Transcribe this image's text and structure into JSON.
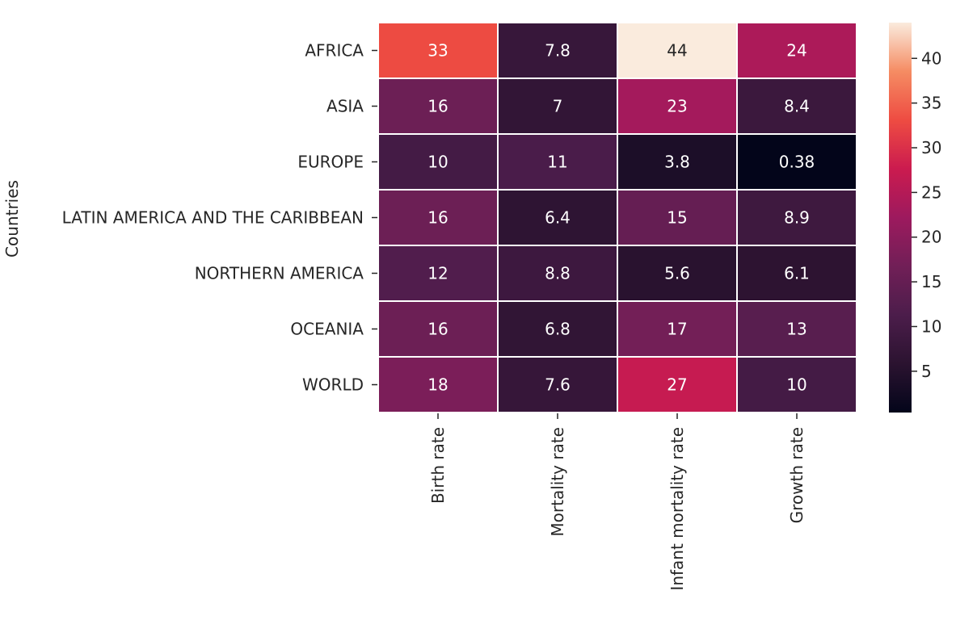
{
  "chart_data": {
    "type": "heatmap",
    "title": "",
    "ylabel": "Countries",
    "xlabel": "",
    "rows": [
      "AFRICA",
      "ASIA",
      "EUROPE",
      "LATIN AMERICA AND THE CARIBBEAN",
      "NORTHERN AMERICA",
      "OCEANIA",
      "WORLD"
    ],
    "columns": [
      "Birth rate",
      "Mortality rate",
      "Infant mortality rate",
      "Growth rate"
    ],
    "values": [
      [
        33,
        7.8,
        44,
        24
      ],
      [
        16,
        7,
        23,
        8.4
      ],
      [
        10,
        11,
        3.8,
        0.38
      ],
      [
        16,
        6.4,
        15,
        8.9
      ],
      [
        12,
        8.8,
        5.6,
        6.1
      ],
      [
        16,
        6.8,
        17,
        13
      ],
      [
        18,
        7.6,
        27,
        10
      ]
    ],
    "value_labels": [
      [
        "33",
        "7.8",
        "44",
        "24"
      ],
      [
        "16",
        "7",
        "23",
        "8.4"
      ],
      [
        "10",
        "11",
        "3.8",
        "0.38"
      ],
      [
        "16",
        "6.4",
        "15",
        "8.9"
      ],
      [
        "12",
        "8.8",
        "5.6",
        "6.1"
      ],
      [
        "16",
        "6.8",
        "17",
        "13"
      ],
      [
        "18",
        "7.6",
        "27",
        "10"
      ]
    ],
    "colorbar": {
      "range": [
        0.38,
        44
      ],
      "ticks": [
        5,
        10,
        15,
        20,
        25,
        30,
        35,
        40
      ],
      "colormap": "rocket"
    },
    "grid": true
  }
}
